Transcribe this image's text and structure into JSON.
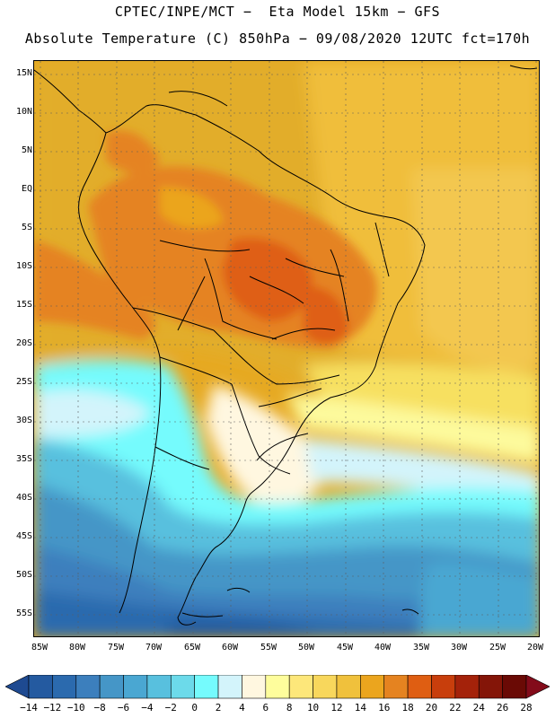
{
  "header": {
    "line1": "CPTEC/INPE/MCT −  Eta Model 15km − GFS",
    "line2": "Absolute Temperature (C) 850hPa − 09/08/2020 12UTC fct=170h"
  },
  "map": {
    "projection": "lat-lon",
    "lat_labels": [
      "15N",
      "10N",
      "5N",
      "EQ",
      "5S",
      "10S",
      "15S",
      "20S",
      "25S",
      "30S",
      "35S",
      "40S",
      "45S",
      "50S",
      "55S"
    ],
    "lon_labels": [
      "85W",
      "80W",
      "75W",
      "70W",
      "65W",
      "60W",
      "55W",
      "50W",
      "45W",
      "40W",
      "35W",
      "30W",
      "25W",
      "20W"
    ],
    "ocean_color": "#e2ad2b"
  },
  "colorbar": {
    "labels": [
      "−14",
      "−12",
      "−10",
      "−8",
      "−6",
      "−4",
      "−2",
      "0",
      "2",
      "4",
      "6",
      "8",
      "10",
      "12",
      "14",
      "16",
      "18",
      "20",
      "22",
      "24",
      "26",
      "28"
    ],
    "colors": [
      "#1e4a91",
      "#245aa0",
      "#2b6aae",
      "#3c7fbd",
      "#4596c7",
      "#4aa7d2",
      "#58c0de",
      "#6cdaea",
      "#75fbfd",
      "#d3f4fb",
      "#fff7e0",
      "#fefd9c",
      "#fde77a",
      "#f8d75c",
      "#f0c13c",
      "#eba51e",
      "#e58320",
      "#df5e12",
      "#c83e0c",
      "#a4220a",
      "#841508",
      "#6a0a05",
      "#830b1a"
    ]
  }
}
